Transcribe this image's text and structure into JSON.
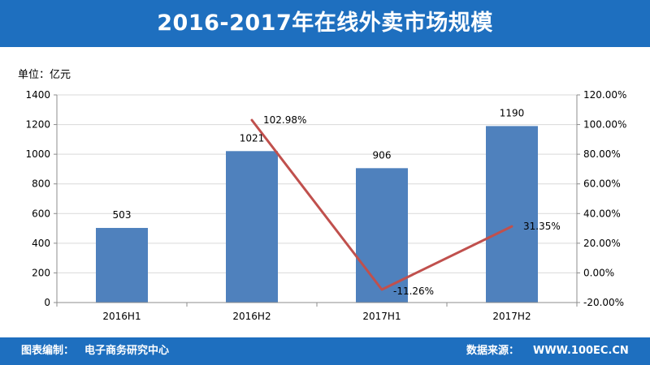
{
  "header": {
    "title": "2016-2017年在线外卖市场规模"
  },
  "unit_label": "单位：亿元",
  "footer": {
    "compiler_label": "图表编制：",
    "compiler_value": "电子商务研究中心",
    "source_label": "数据来源：",
    "source_value": "WWW.100EC.CN"
  },
  "colors": {
    "header_band": "#1e6fbf",
    "bar": "#4f81bd",
    "line": "#c0504d",
    "grid": "#d9d9d9",
    "axis": "#8c8c8c"
  },
  "chart_data": {
    "type": "bar",
    "title": "",
    "xlabel": "",
    "ylabel": "",
    "categories": [
      "2016H1",
      "2016H2",
      "2017H1",
      "2017H2"
    ],
    "series": [
      {
        "values": [
          503,
          1021,
          906,
          1190
        ],
        "data_labels": [
          "503",
          "1021",
          "906",
          "1190"
        ]
      },
      {
        "type": "line",
        "axis": "right",
        "x": [
          "2016H2",
          "2017H1",
          "2017H2"
        ],
        "values": [
          102.98,
          -11.26,
          31.35
        ],
        "data_labels": [
          "102.98%",
          "-11.26%",
          "31.35%"
        ]
      }
    ],
    "ylim": [
      0,
      1400
    ],
    "yticks": [
      "0",
      "200",
      "400",
      "600",
      "800",
      "1000",
      "1200",
      "1400"
    ],
    "y2lim": [
      -20,
      120
    ],
    "y2ticks": [
      "-20.00%",
      "0.00%",
      "20.00%",
      "40.00%",
      "60.00%",
      "80.00%",
      "100.00%",
      "120.00%"
    ],
    "grid": true,
    "legend": "none"
  }
}
